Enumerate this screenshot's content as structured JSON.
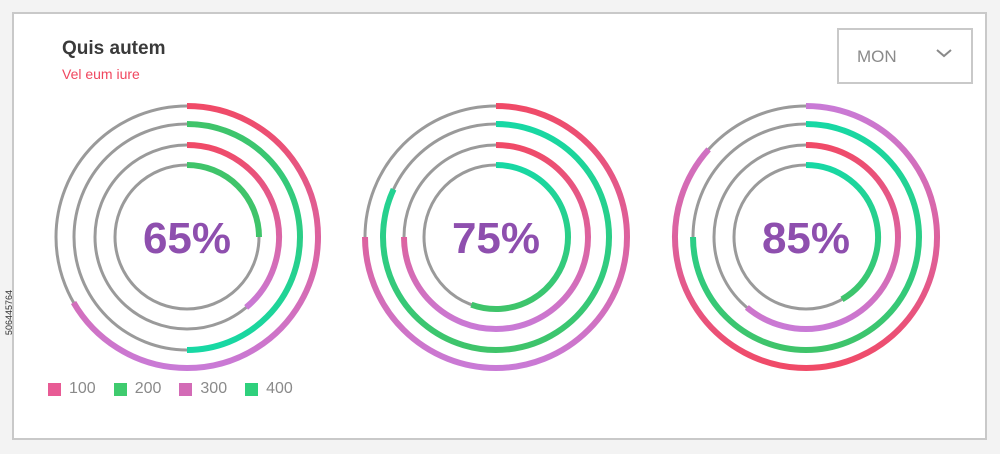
{
  "header": {
    "title": "Quis autem",
    "subtitle": "Vel eum iure"
  },
  "dropdown": {
    "selected": "MON",
    "icon": "chevron-down-icon"
  },
  "watermark": "506445764",
  "colors": {
    "track": "#9a9a9a",
    "pink": "#f04a67",
    "purple": "#c97ad6",
    "green": "#3fc46a",
    "teal": "#17d8a4",
    "percent_text": "#8e4fae",
    "subtitle": "#f0475f"
  },
  "legend": [
    {
      "label": "100",
      "color": "#e85b95"
    },
    {
      "label": "200",
      "color": "#3fcb6e"
    },
    {
      "label": "300",
      "color": "#d36bb6"
    },
    {
      "label": "400",
      "color": "#2ed07c"
    }
  ],
  "chart_data": {
    "type": "radial-bar",
    "series_order": [
      "100",
      "200",
      "300",
      "400"
    ],
    "charts": [
      {
        "label": "65%",
        "value": 65,
        "rings": [
          {
            "series": "100",
            "start_deg": 0,
            "sweep_deg": 240,
            "gradient": [
              "pink",
              "purple"
            ]
          },
          {
            "series": "200",
            "start_deg": 0,
            "sweep_deg": 180,
            "gradient": [
              "green",
              "teal"
            ]
          },
          {
            "series": "300",
            "start_deg": 0,
            "sweep_deg": 140,
            "gradient": [
              "pink",
              "purple"
            ]
          },
          {
            "series": "400",
            "start_deg": 0,
            "sweep_deg": 90,
            "gradient": [
              "green",
              "green"
            ]
          }
        ]
      },
      {
        "label": "75%",
        "value": 75,
        "rings": [
          {
            "series": "100",
            "start_deg": 0,
            "sweep_deg": 270,
            "gradient": [
              "pink",
              "purple"
            ]
          },
          {
            "series": "200",
            "start_deg": 0,
            "sweep_deg": 295,
            "gradient": [
              "teal",
              "green"
            ]
          },
          {
            "series": "300",
            "start_deg": 0,
            "sweep_deg": 270,
            "gradient": [
              "pink",
              "purple"
            ]
          },
          {
            "series": "400",
            "start_deg": 0,
            "sweep_deg": 200,
            "gradient": [
              "teal",
              "green"
            ]
          }
        ]
      },
      {
        "label": "85%",
        "value": 85,
        "rings": [
          {
            "series": "100",
            "start_deg": 0,
            "sweep_deg": 312,
            "gradient": [
              "purple",
              "pink"
            ]
          },
          {
            "series": "200",
            "start_deg": 0,
            "sweep_deg": 270,
            "gradient": [
              "teal",
              "green"
            ]
          },
          {
            "series": "300",
            "start_deg": 0,
            "sweep_deg": 220,
            "gradient": [
              "pink",
              "purple"
            ]
          },
          {
            "series": "400",
            "start_deg": 0,
            "sweep_deg": 150,
            "gradient": [
              "teal",
              "green"
            ]
          }
        ]
      }
    ]
  }
}
